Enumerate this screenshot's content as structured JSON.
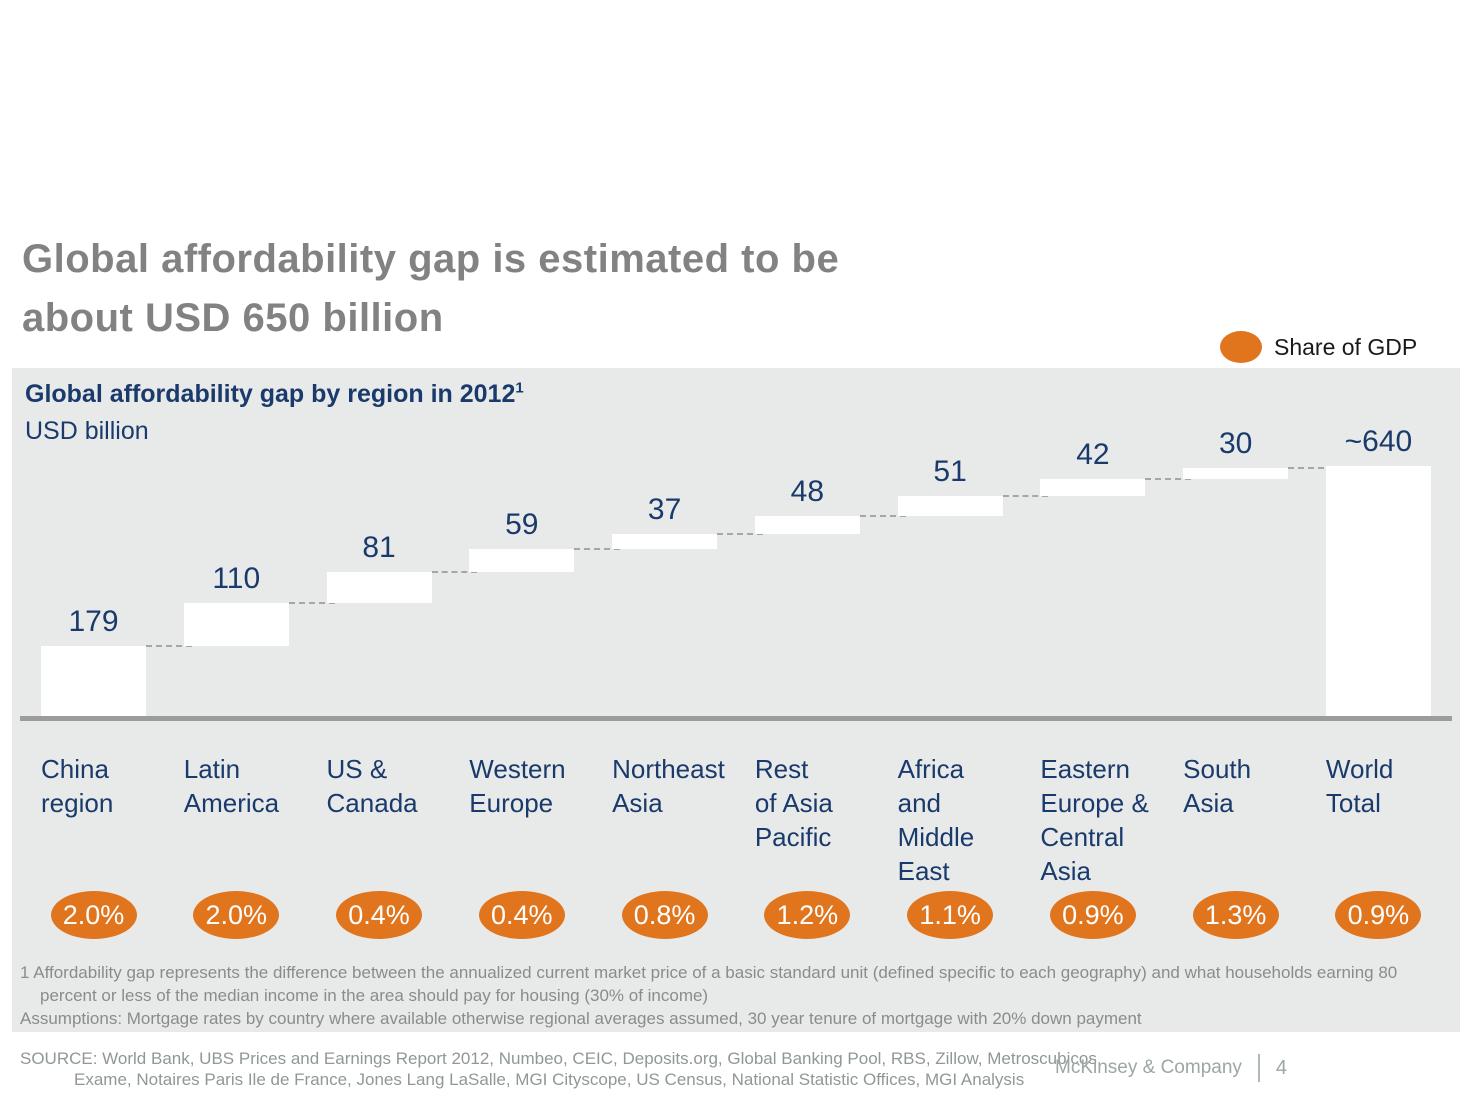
{
  "slide": {
    "title_lines": [
      "Global affordability gap is estimated to be",
      "about USD 650 billion"
    ]
  },
  "legend": {
    "label": "Share of GDP",
    "marker_color": "#E1751E"
  },
  "exhibit": {
    "title": "Global affordability gap by region in 2012",
    "title_footnote_ref": "1",
    "unit": "USD billion"
  },
  "chart_data": {
    "type": "bar",
    "variant": "waterfall",
    "title": "Global affordability gap by region in 2012",
    "unit": "USD billion",
    "categories": [
      "China region",
      "Latin America",
      "US & Canada",
      "Western Europe",
      "Northeast Asia",
      "Rest of Asia Pacific",
      "Africa and Middle East",
      "Eastern Europe & Central Asia",
      "South Asia",
      "World Total"
    ],
    "category_lines": [
      [
        "China",
        "region"
      ],
      [
        "Latin",
        "America"
      ],
      [
        "US &",
        "Canada"
      ],
      [
        "Western",
        "Europe"
      ],
      [
        "Northeast",
        "Asia"
      ],
      [
        "Rest",
        "of Asia",
        "Pacific"
      ],
      [
        "Africa",
        "and",
        "Middle",
        "East"
      ],
      [
        "Eastern",
        "Europe &",
        "Central",
        "Asia"
      ],
      [
        "South",
        "Asia"
      ],
      [
        "World",
        "Total"
      ]
    ],
    "values": [
      179,
      110,
      81,
      59,
      37,
      48,
      51,
      42,
      30,
      640
    ],
    "value_labels": [
      "179",
      "110",
      "81",
      "59",
      "37",
      "48",
      "51",
      "42",
      "30",
      "~640"
    ],
    "is_total": [
      false,
      false,
      false,
      false,
      false,
      false,
      false,
      false,
      false,
      true
    ],
    "share_of_gdp_labels": [
      "2.0%",
      "2.0%",
      "0.4%",
      "0.4%",
      "0.8%",
      "1.2%",
      "1.1%",
      "0.9%",
      "1.3%",
      "0.9%"
    ],
    "legend": [
      {
        "label": "Share of GDP",
        "color": "#E1751E"
      }
    ],
    "bar_fill": "#FFFFFF",
    "label_color": "#1A3A6B",
    "badge_color": "#E1751E",
    "baseline_color": "#9C9C9C",
    "panel_background": "#E8EAEA",
    "grid": false,
    "ylim": [
      0,
      660
    ],
    "legend_position": "top-right"
  },
  "footnotes": {
    "line1": "1 Affordability gap represents the difference between the annualized current market price of a basic standard unit (defined specific to each geography) and what households earning 80",
    "line2": "percent or less of the median income in the area should pay for housing (30% of income)",
    "line3": "Assumptions: Mortgage rates by country where available otherwise regional averages assumed, 30 year tenure of mortgage with 20% down payment"
  },
  "source": {
    "line1": "SOURCE: World Bank, UBS Prices and Earnings Report 2012, Numbeo, CEIC, Deposits.org, Global Banking Pool, RBS, Zillow, Metroscubicos,",
    "line2": "Exame, Notaires Paris Ile de France, Jones Lang LaSalle, MGI Cityscope, US Census, National Statistic Offices, MGI Analysis"
  },
  "footer": {
    "brand": "McKinsey & Company",
    "page_number": "4"
  }
}
